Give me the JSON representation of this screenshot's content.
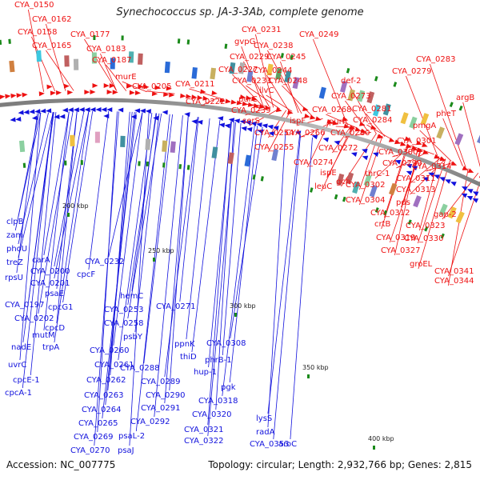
{
  "title": "Synechococcus sp. JA-3-3Ab, complete genome",
  "footer": {
    "accession": "Accession: NC_007775",
    "topology": "Topology: circular; Length: 2,932,766 bp; Genes: 2,815"
  },
  "colors": {
    "forward": "#ee1111",
    "reverse": "#1111dd",
    "backbone": "#999999",
    "tick_mark": "#1a8a1a"
  },
  "position_labels": [
    "200 kbp",
    "250 kbp",
    "300 kbp",
    "350 kbp",
    "400 kbp"
  ],
  "forward_labels": [
    "CYA_0150",
    "CYA_0162",
    "CYA_0158",
    "CYA_0165",
    "CYA_0177",
    "CYA_0183",
    "CYA_0187",
    "murE",
    "CYA_0205",
    "CYA_0211",
    "CYA_0231",
    "gvpG",
    "CYA_0229",
    "CYA_0227",
    "CYA_0233",
    "CYA_0222",
    "purC",
    "CYA_0239",
    "serS",
    "CYA_0238",
    "CYA_0245",
    "CYA_0244",
    "ilvC",
    "CYA_0248",
    "CYA_0249",
    "CYA_0254",
    "CYA_0255",
    "ispF",
    "CYA_0268",
    "CYA_0266",
    "CYA_0272",
    "CYA_0274",
    "ispE",
    "leuC",
    "gch",
    "purF",
    "CYA_0273",
    "def-2",
    "CYA_0279",
    "CYA_0283",
    "CYA_0281",
    "CYA_0284",
    "CYA_0280",
    "pmgA",
    "argB",
    "pheT",
    "CYA_0301",
    "CYA_0300",
    "CYA_0299",
    "thrC-1",
    "CYA_0302",
    "CYA_0304",
    "CYA_0314",
    "CYA_0311",
    "CYA_0313",
    "pds",
    "CYA_0312",
    "crtB",
    "CYA_0319",
    "gap-2",
    "CYA_0323",
    "CYA_0327",
    "CYA_0330",
    "groEL",
    "CYA_0341",
    "CYA_0344"
  ],
  "reverse_labels": [
    "clpB",
    "zam",
    "phoU",
    "treZ",
    "rpsU",
    "carA",
    "CYA_0200",
    "CYA_0201",
    "psaE",
    "CYA_0197",
    "cpcG1",
    "CYA_0202",
    "cpcD",
    "mutM",
    "nadE",
    "trpA",
    "uvrC",
    "cpcE-1",
    "cpcA-1",
    "CYA_0232",
    "cpcF",
    "hemC",
    "CYA_0253",
    "CYA_0258",
    "CYA_0271",
    "psbY",
    "CYA_0260",
    "CYA_0261",
    "CYA_0262",
    "CYA_0263",
    "CYA_0264",
    "CYA_0265",
    "CYA_0269",
    "CYA_0270",
    "CYA_0288",
    "CYA_0289",
    "CYA_0290",
    "CYA_0291",
    "CYA_0292",
    "psaL-2",
    "psaJ",
    "ppnK",
    "thiD",
    "CYA_0308",
    "phrB-1",
    "hup-1",
    "pgk",
    "CYA_0318",
    "CYA_0320",
    "CYA_0321",
    "CYA_0322",
    "lysS",
    "radA",
    "aroC",
    "CYA_0353"
  ]
}
